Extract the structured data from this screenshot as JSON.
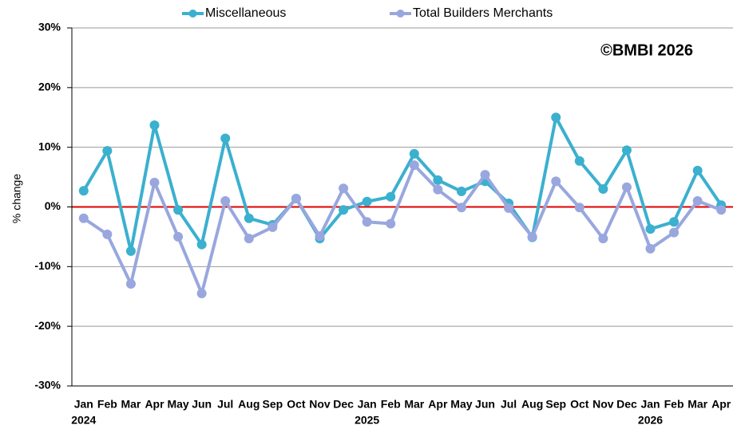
{
  "chart_data": {
    "type": "line",
    "y_label": "% change",
    "annotation": "©BMBI 2026",
    "categories": [
      "Jan",
      "Feb",
      "Mar",
      "Apr",
      "May",
      "Jun",
      "Jul",
      "Aug",
      "Sep",
      "Oct",
      "Nov",
      "Dec",
      "Jan",
      "Feb",
      "Mar",
      "Apr",
      "May",
      "Jun",
      "Jul",
      "Aug",
      "Sep",
      "Oct",
      "Nov",
      "Dec",
      "Jan",
      "Feb",
      "Mar",
      "Apr"
    ],
    "years": [
      "2024",
      null,
      null,
      null,
      null,
      null,
      null,
      null,
      null,
      null,
      null,
      null,
      "2025",
      null,
      null,
      null,
      null,
      null,
      null,
      null,
      null,
      null,
      null,
      null,
      "2026",
      null,
      null,
      null
    ],
    "series": [
      {
        "name": "Miscellaneous",
        "color": "#3bb0cf",
        "values": [
          2.7,
          9.4,
          -7.4,
          13.7,
          -0.5,
          -6.3,
          11.5,
          -1.9,
          -3.0,
          1.4,
          -5.3,
          -0.5,
          0.9,
          1.7,
          8.9,
          4.5,
          2.6,
          4.3,
          0.6,
          -5.1,
          15.0,
          7.7,
          3.0,
          9.5,
          -3.7,
          -2.5,
          6.1,
          0.3
        ]
      },
      {
        "name": "Total Builders Merchants",
        "color": "#99a7de",
        "values": [
          -1.9,
          -4.6,
          -12.9,
          4.1,
          -5.0,
          -14.5,
          1.0,
          -5.3,
          -3.4,
          1.4,
          -4.9,
          3.1,
          -2.5,
          -2.8,
          7.0,
          2.9,
          -0.1,
          5.4,
          -0.2,
          -5.0,
          4.3,
          -0.1,
          -5.3,
          3.3,
          -7.0,
          -4.3,
          1.0,
          -0.5
        ]
      }
    ],
    "ylim": [
      -30,
      30
    ],
    "yticks": [
      {
        "value": -30,
        "label": "-30%"
      },
      {
        "value": -20,
        "label": "-20%"
      },
      {
        "value": -10,
        "label": "-10%"
      },
      {
        "value": 0,
        "label": "0%"
      },
      {
        "value": 10,
        "label": "10%"
      },
      {
        "value": 20,
        "label": "20%"
      },
      {
        "value": 30,
        "label": "30%"
      }
    ],
    "grid": true,
    "reference_line": {
      "value": 0,
      "color": "#e00000"
    },
    "legend": "top"
  }
}
